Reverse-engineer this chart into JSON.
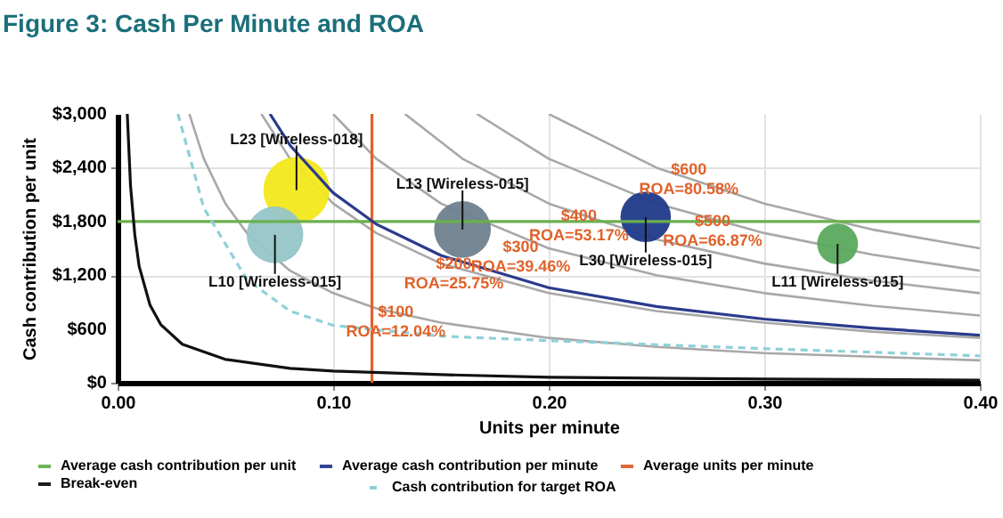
{
  "chart_data": {
    "type": "line",
    "title": "Figure 3: Cash Per Minute and ROA",
    "xlabel": "Units per minute",
    "ylabel": "Cash contribution per unit",
    "xlim": [
      0,
      0.4
    ],
    "ylim": [
      0,
      3000
    ],
    "xticks": [
      {
        "value": 0,
        "label": "0.00"
      },
      {
        "value": 0.1,
        "label": "0.10"
      },
      {
        "value": 0.2,
        "label": "0.20"
      },
      {
        "value": 0.3,
        "label": "0.30"
      },
      {
        "value": 0.4,
        "label": "0.40"
      }
    ],
    "yticks": [
      {
        "value": 0,
        "label": "$0"
      },
      {
        "value": 600,
        "label": "$600"
      },
      {
        "value": 1200,
        "label": "$1,200"
      },
      {
        "value": 1800,
        "label": "$1,800"
      },
      {
        "value": 2400,
        "label": "$2,400"
      },
      {
        "value": 3000,
        "label": "$3,000"
      }
    ],
    "grid": true,
    "legend": "bottom",
    "series": [
      {
        "name": "Average cash contribution per unit",
        "color": "#6ab04c",
        "line_style": "solid",
        "x": [
          0,
          0.4
        ],
        "values": [
          1800,
          1800
        ]
      },
      {
        "name": "Average units per minute",
        "color": "#e0622a",
        "line_style": "solid",
        "x": [
          0.118,
          0.118
        ],
        "values": [
          0,
          3000
        ]
      },
      {
        "name": "Average cash contribution per minute",
        "color": "#2b3a8c",
        "line_style": "solid",
        "x": [
          0.0707,
          0.08,
          0.1,
          0.12,
          0.15,
          0.2,
          0.25,
          0.3,
          0.35,
          0.4
        ],
        "values": [
          3000,
          2650,
          2120,
          1770,
          1420,
          1060,
          850,
          710,
          610,
          530
        ]
      },
      {
        "name": "Break-even",
        "color": "#111111",
        "line_style": "solid",
        "x": [
          0.0045,
          0.006,
          0.008,
          0.01,
          0.015,
          0.02,
          0.03,
          0.05,
          0.08,
          0.1,
          0.15,
          0.2,
          0.3,
          0.4
        ],
        "values": [
          3000,
          2200,
          1650,
          1300,
          870,
          650,
          430,
          260,
          160,
          130,
          90,
          60,
          40,
          30
        ]
      },
      {
        "name": "Cash contribution for target ROA",
        "color": "#8fd0d8",
        "line_style": "dashed",
        "x": [
          0.028,
          0.04,
          0.06,
          0.08,
          0.1,
          0.15,
          0.2,
          0.3,
          0.4
        ],
        "values": [
          3000,
          1950,
          1150,
          800,
          640,
          520,
          470,
          380,
          300
        ]
      },
      {
        "color": "#a8a8a8",
        "line_style": "solid",
        "x": [
          0.0333,
          0.04,
          0.05,
          0.06,
          0.08,
          0.1,
          0.12,
          0.15,
          0.2,
          0.25,
          0.3,
          0.35,
          0.4
        ],
        "values": [
          3000,
          2500,
          2000,
          1670,
          1250,
          1000,
          830,
          670,
          500,
          400,
          330,
          290,
          250
        ]
      },
      {
        "color": "#a8a8a8",
        "line_style": "solid",
        "x": [
          0.0667,
          0.08,
          0.1,
          0.12,
          0.15,
          0.2,
          0.25,
          0.3,
          0.35,
          0.4
        ],
        "values": [
          3000,
          2500,
          2000,
          1670,
          1330,
          1000,
          800,
          670,
          570,
          500
        ]
      },
      {
        "color": "#a8a8a8",
        "line_style": "solid",
        "x": [
          0.1,
          0.12,
          0.15,
          0.2,
          0.25,
          0.3,
          0.35,
          0.4
        ],
        "values": [
          3000,
          2500,
          2000,
          1500,
          1200,
          1000,
          860,
          750
        ]
      },
      {
        "color": "#a8a8a8",
        "line_style": "solid",
        "x": [
          0.1333,
          0.16,
          0.2,
          0.25,
          0.3,
          0.35,
          0.4
        ],
        "values": [
          3000,
          2500,
          2000,
          1600,
          1330,
          1140,
          1000
        ]
      },
      {
        "color": "#a8a8a8",
        "line_style": "solid",
        "x": [
          0.1667,
          0.2,
          0.25,
          0.3,
          0.35,
          0.4
        ],
        "values": [
          3000,
          2500,
          2000,
          1670,
          1430,
          1250
        ]
      },
      {
        "color": "#a8a8a8",
        "line_style": "solid",
        "x": [
          0.2,
          0.25,
          0.3,
          0.35,
          0.4
        ],
        "values": [
          3000,
          2400,
          2000,
          1710,
          1500
        ]
      },
      {
        "type": "bubble",
        "name": "L23 [Wireless-018]",
        "color": "#f2e81a",
        "x": [
          0.083
        ],
        "values": [
          2150
        ],
        "sizes": [
          1
        ]
      },
      {
        "type": "bubble",
        "name": "L10 [Wireless-015]",
        "color": "#95c5c8",
        "x": [
          0.073
        ],
        "values": [
          1650
        ],
        "sizes": [
          0.73
        ]
      },
      {
        "type": "bubble",
        "name": "L13 [Wireless-015]",
        "color": "#6e7f8e",
        "x": [
          0.16
        ],
        "values": [
          1710
        ],
        "sizes": [
          0.73
        ]
      },
      {
        "type": "bubble",
        "name": "L30 [Wireless-015]",
        "color": "#1f3a8a",
        "x": [
          0.245
        ],
        "values": [
          1850
        ],
        "sizes": [
          0.58
        ]
      },
      {
        "type": "bubble",
        "name": "L11 [Wireless-015]",
        "color": "#5aaa5e",
        "x": [
          0.334
        ],
        "values": [
          1550
        ],
        "sizes": [
          0.38
        ]
      }
    ],
    "annotations": [
      {
        "text": "$100\nROA=12.04%",
        "x": 0.129,
        "y": 795
      },
      {
        "text": "$200\nROA=25.75%",
        "x": 0.156,
        "y": 1330
      },
      {
        "text": "$300\nROA=39.46%",
        "x": 0.187,
        "y": 1520
      },
      {
        "text": "$400\nROA=53.17%",
        "x": 0.214,
        "y": 1870
      },
      {
        "text": "$500\nROA=66.87%",
        "x": 0.276,
        "y": 1810
      },
      {
        "text": "$600\nROA=80.58%",
        "x": 0.265,
        "y": 2380
      }
    ]
  }
}
